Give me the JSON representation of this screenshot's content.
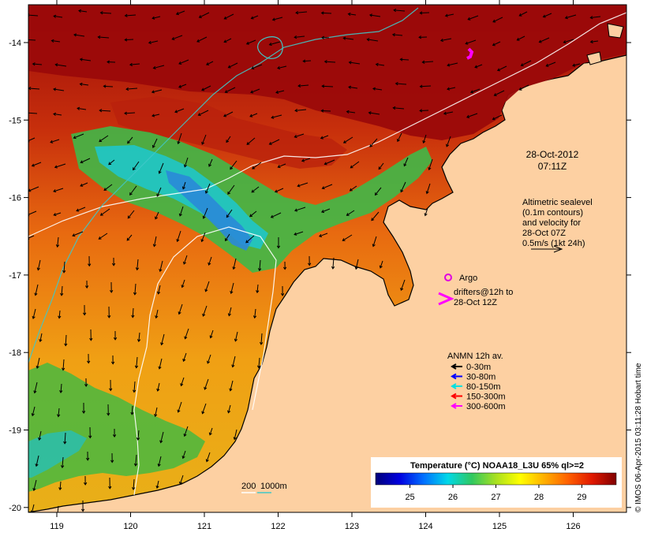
{
  "map": {
    "x_tick_labels": [
      "119",
      "120",
      "121",
      "122",
      "123",
      "124",
      "125",
      "126"
    ],
    "y_tick_labels": [
      "-14",
      "-15",
      "-16",
      "-17",
      "-18",
      "-19",
      "-20"
    ],
    "timestamp": {
      "date": "28-Oct-2012",
      "time": "07:11Z"
    },
    "altimetry_note": {
      "line1": "Altimetric sealevel",
      "line2": "(0.1m contours)",
      "line3": "and velocity for",
      "line4": "28-Oct 07Z",
      "line5": "0.5m/s (1kt 24h)"
    },
    "argo_label": "Argo",
    "drifters": {
      "line1": "drifters@12h to",
      "line2": "28-Oct 12Z"
    },
    "anmn": {
      "title": "ANMN 12h av.",
      "items": [
        {
          "label": "0-30m",
          "color": "#000000"
        },
        {
          "label": "30-80m",
          "color": "#0000ff"
        },
        {
          "label": "80-150m",
          "color": "#00e0e0"
        },
        {
          "label": "150-300m",
          "color": "#ff0000"
        },
        {
          "label": "300-600m",
          "color": "#ff00ff"
        }
      ]
    },
    "depth_legend": {
      "label1": "200",
      "label2": "1000m",
      "color1": "#ffffff",
      "color2": "#40c8c8"
    },
    "colorbar": {
      "title": "Temperature (°C) NOAA18_L3U 65% ql>=2",
      "tick_labels": [
        "25",
        "26",
        "27",
        "28",
        "29"
      ]
    },
    "credit": "© IMOS 06-Apr-2015 03:11:28 Hobart time",
    "colors": {
      "land": "#fdd0a2",
      "warm": "#9b0a0a",
      "cool": "#2a8ad8"
    }
  }
}
